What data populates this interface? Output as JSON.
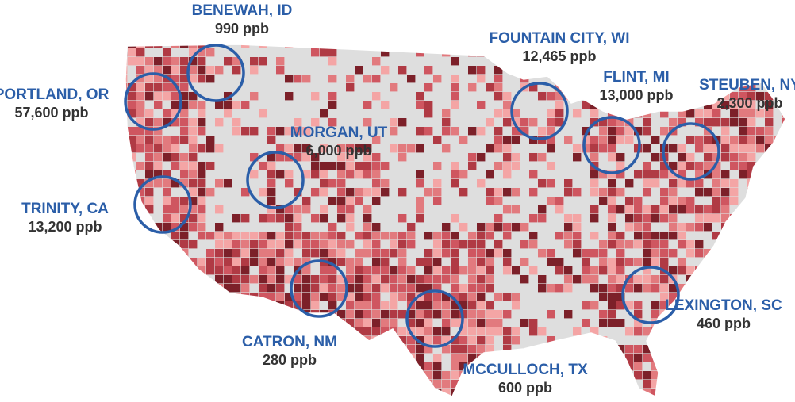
{
  "locations": [
    {
      "name": "BENEWAH, ID",
      "value": "990 ppb"
    },
    {
      "name": "PORTLAND, OR",
      "value": "57,600 ppb"
    },
    {
      "name": "MORGAN, UT",
      "value": "6,000 ppb"
    },
    {
      "name": "TRINITY, CA",
      "value": "13,200 ppb"
    },
    {
      "name": "CATRON, NM",
      "value": "280 ppb"
    },
    {
      "name": "MCCULLOCH, TX",
      "value": "600 ppb"
    },
    {
      "name": "FOUNTAIN CITY, WI",
      "value": "12,465 ppb"
    },
    {
      "name": "FLINT, MI",
      "value": "13,000 ppb"
    },
    {
      "name": "STEUBEN, NY",
      "value": "2,300 ppb"
    },
    {
      "name": "LEXINGTON, SC",
      "value": "460 ppb"
    }
  ]
}
